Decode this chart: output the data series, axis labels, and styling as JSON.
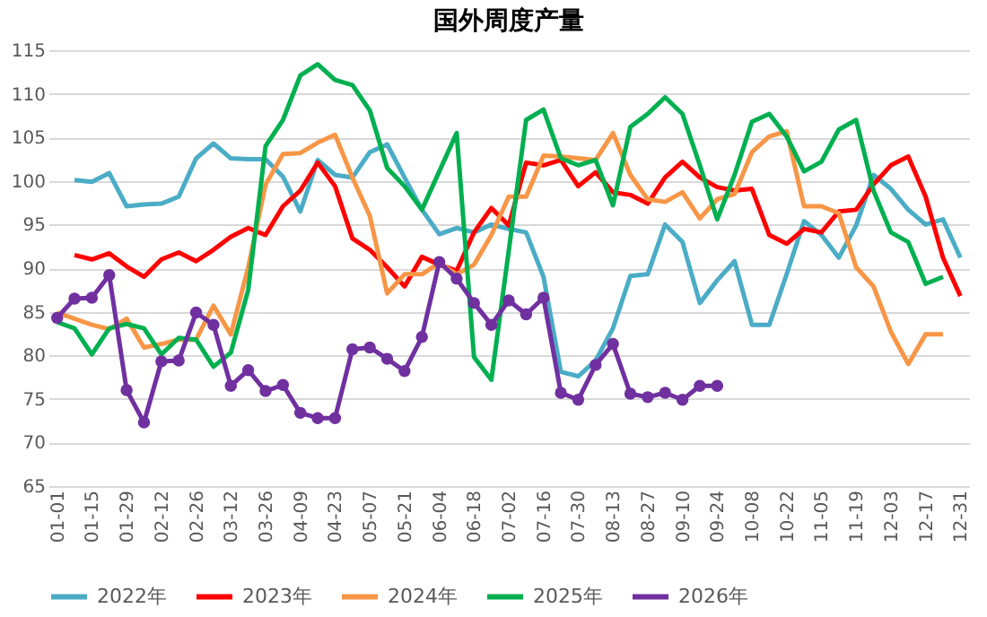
{
  "chart_data": {
    "type": "line",
    "title": "国外周度产量",
    "categories": [
      "01-01",
      null,
      "01-15",
      null,
      "01-29",
      null,
      "02-12",
      null,
      "02-26",
      null,
      "03-12",
      null,
      "03-26",
      null,
      "04-09",
      null,
      "04-23",
      null,
      "05-07",
      null,
      "05-21",
      null,
      "06-04",
      null,
      "06-18",
      null,
      "07-02",
      null,
      "07-16",
      null,
      "07-30",
      null,
      "08-13",
      null,
      "08-27",
      null,
      "09-10",
      null,
      "09-24",
      null,
      "10-08",
      null,
      "10-22",
      null,
      "11-05",
      null,
      "11-19",
      null,
      "12-03",
      null,
      "12-17",
      null,
      "12-31"
    ],
    "ylim": [
      65,
      115
    ],
    "yticks": [
      65,
      70,
      75,
      80,
      85,
      90,
      95,
      100,
      105,
      110,
      115
    ],
    "grid": "y",
    "legend": "bottom",
    "line_style": "solid",
    "series": [
      {
        "name": "2022年",
        "color": "#4bacc6",
        "marker": "none",
        "values": [
          null,
          100.1,
          99.9,
          100.9,
          97.1,
          97.3,
          97.4,
          98.2,
          102.6,
          104.3,
          102.6,
          102.5,
          102.5,
          100.5,
          96.5,
          102.4,
          100.7,
          100.4,
          103.3,
          104.2,
          100.4,
          96.7,
          93.9,
          94.6,
          94.1,
          95,
          94.5,
          94.1,
          89,
          78.1,
          77.6,
          79.4,
          83.1,
          89.1,
          89.3,
          95,
          93,
          86,
          88.6,
          90.8,
          83.5,
          83.5,
          89.3,
          95.4,
          93.8,
          91.2,
          94.9,
          100.7,
          99.1,
          96.7,
          95,
          95.6,
          91.2
        ]
      },
      {
        "name": "2023年",
        "color": "#ff0000",
        "marker": "none",
        "values": [
          null,
          91.5,
          91,
          91.7,
          90.2,
          89,
          91,
          91.8,
          90.8,
          92.1,
          93.6,
          94.6,
          93.8,
          97.1,
          98.9,
          102.1,
          99.4,
          93.4,
          92.1,
          90.1,
          87.9,
          91.3,
          90.4,
          89.7,
          94.1,
          96.9,
          94.9,
          102.1,
          101.8,
          102.4,
          99.4,
          101,
          98.7,
          98.4,
          97.4,
          100.4,
          102.2,
          100.4,
          99.3,
          98.9,
          99.1,
          93.8,
          92.8,
          94.5,
          94.1,
          96.5,
          96.7,
          99.6,
          101.8,
          102.8,
          98.2,
          91.2,
          86.8
        ]
      },
      {
        "name": "2024年",
        "color": "#f79646",
        "marker": "none",
        "values": [
          84.9,
          84.2,
          83.5,
          83,
          84.2,
          80.9,
          81.3,
          81.8,
          81.8,
          85.7,
          82.4,
          90.1,
          99.6,
          103.1,
          103.2,
          104.4,
          105.3,
          100.4,
          96,
          87.1,
          89.3,
          89.3,
          90.6,
          89.3,
          90.4,
          93.8,
          98.2,
          98.2,
          102.9,
          102.8,
          102.6,
          102.4,
          105.5,
          100.7,
          97.9,
          97.6,
          98.7,
          95.7,
          97.9,
          98.5,
          103.3,
          105.1,
          105.7,
          97.1,
          97.1,
          96.3,
          90.1,
          87.9,
          82.7,
          79,
          82.4,
          82.4,
          null
        ]
      },
      {
        "name": "2025年",
        "color": "#00b050",
        "marker": "none",
        "values": [
          83.8,
          83.1,
          80.1,
          83.1,
          83.6,
          83.1,
          80.1,
          82,
          81.8,
          78.7,
          80.3,
          87.5,
          104,
          107,
          112.1,
          113.4,
          111.6,
          111,
          108.1,
          101.5,
          99.4,
          96.7,
          101.1,
          105.5,
          79.8,
          77.2,
          92,
          107,
          108.2,
          102.6,
          101.8,
          102.4,
          97.2,
          106.2,
          107.7,
          109.6,
          107.7,
          101.8,
          95.6,
          100.7,
          106.8,
          107.7,
          105.1,
          101.1,
          102.2,
          105.9,
          107,
          98.9,
          94.1,
          93,
          88.2,
          89,
          null
        ]
      },
      {
        "name": "2026年",
        "color": "#7030a0",
        "marker": "circle",
        "values": [
          84.3,
          86.5,
          86.6,
          89.2,
          76,
          72.3,
          79.3,
          79.4,
          84.9,
          83.5,
          76.5,
          78.3,
          75.9,
          76.6,
          73.4,
          72.8,
          72.8,
          80.7,
          80.9,
          79.6,
          78.2,
          82.1,
          90.7,
          88.8,
          86,
          83.5,
          86.3,
          84.7,
          86.6,
          75.7,
          74.9,
          78.9,
          81.3,
          75.6,
          75.2,
          75.7,
          74.9,
          76.5,
          76.5,
          null,
          null,
          null,
          null,
          null,
          null,
          null,
          null,
          null,
          null,
          null,
          null,
          null,
          null
        ]
      }
    ]
  }
}
